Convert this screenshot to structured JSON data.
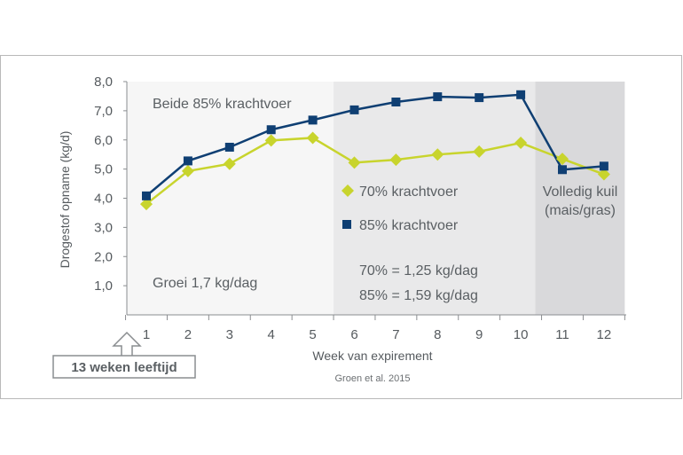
{
  "chart_data": {
    "type": "line",
    "title": "",
    "xlabel": "Week van expirement",
    "ylabel": "Drogestof opname  (kg/d)",
    "x": [
      1,
      2,
      3,
      4,
      5,
      6,
      7,
      8,
      9,
      10,
      11,
      12
    ],
    "xlim": [
      0.5,
      12.5
    ],
    "ylim": [
      0,
      8
    ],
    "y_ticks": [
      "1,0",
      "2,0",
      "3,0",
      "4,0",
      "5,0",
      "6,0",
      "7,0",
      "8,0"
    ],
    "x_ticks": [
      "1",
      "2",
      "3",
      "4",
      "5",
      "6",
      "7",
      "8",
      "9",
      "10",
      "11",
      "12"
    ],
    "grid": false,
    "legend_position": "center",
    "series": [
      {
        "name": "70% krachtvoer",
        "marker": "diamond",
        "color": "#c8d42d",
        "values": [
          3.8,
          4.93,
          5.18,
          5.98,
          6.07,
          5.22,
          5.32,
          5.5,
          5.6,
          5.9,
          5.35,
          4.82
        ]
      },
      {
        "name": "85% krachtvoer",
        "marker": "square",
        "color": "#0f3f73",
        "values": [
          4.08,
          5.28,
          5.75,
          6.35,
          6.68,
          7.03,
          7.3,
          7.48,
          7.45,
          7.55,
          4.98,
          5.1
        ]
      }
    ],
    "regions": [
      {
        "from": 0.5,
        "to": 5.5,
        "color": "#f6f6f6"
      },
      {
        "from": 5.5,
        "to": 10.35,
        "color": "#e9e9ea"
      },
      {
        "from": 10.35,
        "to": 12.5,
        "color": "#d9d9db"
      }
    ],
    "annotations": {
      "phase1": "Beide 85% krachtvoer",
      "growth": "Groei 1,7 kg/dag",
      "rate70": "70% = 1,25 kg/dag",
      "rate85": "85% = 1,59 kg/dag",
      "silage_line1": "Volledig kuil",
      "silage_line2": "(mais/gras)",
      "age_callout": "13 weken leeftijd",
      "source": "Groen et al. 2015"
    },
    "colors": {
      "axis": "#8a8d90",
      "text": "#555a5e"
    }
  }
}
